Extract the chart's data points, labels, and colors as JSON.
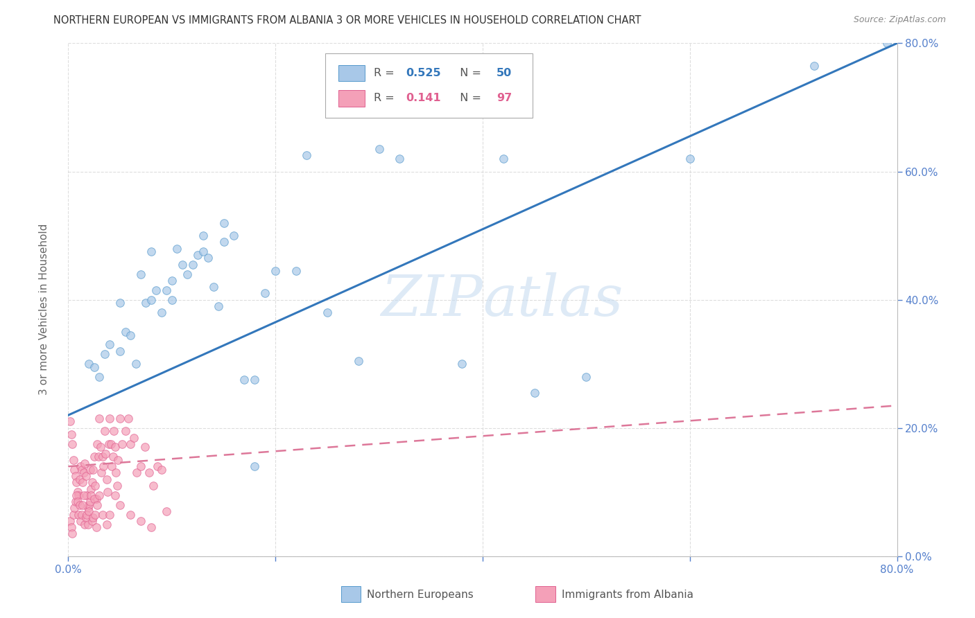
{
  "title": "NORTHERN EUROPEAN VS IMMIGRANTS FROM ALBANIA 3 OR MORE VEHICLES IN HOUSEHOLD CORRELATION CHART",
  "source": "Source: ZipAtlas.com",
  "ylabel": "3 or more Vehicles in Household",
  "xlim": [
    0,
    0.8
  ],
  "ylim": [
    0,
    0.8
  ],
  "xticks": [
    0.0,
    0.2,
    0.4,
    0.6,
    0.8
  ],
  "yticks": [
    0.0,
    0.2,
    0.4,
    0.6,
    0.8
  ],
  "xticklabels": [
    "0.0%",
    "",
    "",
    "",
    "80.0%"
  ],
  "yticklabels": [
    "0.0%",
    "20.0%",
    "40.0%",
    "60.0%",
    "80.0%"
  ],
  "watermark": "ZIPatlas",
  "blue_R": 0.525,
  "blue_N": 50,
  "pink_R": 0.141,
  "pink_N": 97,
  "blue_color": "#a8c8e8",
  "pink_color": "#f4a0b8",
  "blue_edge_color": "#5599cc",
  "pink_edge_color": "#e06090",
  "blue_line_color": "#3377bb",
  "pink_line_color": "#dd7799",
  "grid_color": "#dddddd",
  "tick_color": "#5580cc",
  "title_color": "#333333",
  "source_color": "#888888",
  "legend_text_color": "#444444",
  "blue_x": [
    0.02,
    0.025,
    0.035,
    0.04,
    0.05,
    0.055,
    0.06,
    0.065,
    0.07,
    0.075,
    0.08,
    0.085,
    0.09,
    0.095,
    0.1,
    0.105,
    0.11,
    0.115,
    0.12,
    0.125,
    0.13,
    0.135,
    0.14,
    0.145,
    0.15,
    0.16,
    0.17,
    0.18,
    0.19,
    0.2,
    0.22,
    0.25,
    0.28,
    0.32,
    0.38,
    0.42,
    0.5,
    0.6,
    0.72,
    0.79,
    0.03,
    0.05,
    0.08,
    0.1,
    0.13,
    0.15,
    0.18,
    0.23,
    0.3,
    0.45
  ],
  "blue_y": [
    0.3,
    0.295,
    0.315,
    0.33,
    0.32,
    0.35,
    0.345,
    0.3,
    0.44,
    0.395,
    0.4,
    0.415,
    0.38,
    0.415,
    0.43,
    0.48,
    0.455,
    0.44,
    0.455,
    0.47,
    0.475,
    0.465,
    0.42,
    0.39,
    0.49,
    0.5,
    0.275,
    0.275,
    0.41,
    0.445,
    0.445,
    0.38,
    0.305,
    0.62,
    0.3,
    0.62,
    0.28,
    0.62,
    0.765,
    0.8,
    0.28,
    0.395,
    0.475,
    0.4,
    0.5,
    0.52,
    0.14,
    0.625,
    0.635,
    0.255
  ],
  "pink_x": [
    0.002,
    0.003,
    0.004,
    0.005,
    0.006,
    0.007,
    0.008,
    0.009,
    0.01,
    0.011,
    0.012,
    0.013,
    0.014,
    0.015,
    0.016,
    0.017,
    0.018,
    0.019,
    0.02,
    0.021,
    0.022,
    0.023,
    0.024,
    0.025,
    0.026,
    0.027,
    0.028,
    0.029,
    0.03,
    0.031,
    0.032,
    0.033,
    0.034,
    0.035,
    0.036,
    0.037,
    0.038,
    0.039,
    0.04,
    0.041,
    0.042,
    0.043,
    0.044,
    0.045,
    0.046,
    0.047,
    0.048,
    0.05,
    0.052,
    0.055,
    0.058,
    0.06,
    0.063,
    0.066,
    0.07,
    0.074,
    0.078,
    0.082,
    0.086,
    0.09,
    0.002,
    0.003,
    0.004,
    0.005,
    0.006,
    0.007,
    0.008,
    0.009,
    0.01,
    0.011,
    0.012,
    0.013,
    0.014,
    0.015,
    0.016,
    0.017,
    0.018,
    0.019,
    0.02,
    0.021,
    0.022,
    0.023,
    0.024,
    0.025,
    0.026,
    0.027,
    0.028,
    0.03,
    0.033,
    0.037,
    0.04,
    0.045,
    0.05,
    0.06,
    0.07,
    0.08,
    0.095
  ],
  "pink_y": [
    0.21,
    0.19,
    0.175,
    0.15,
    0.135,
    0.125,
    0.115,
    0.1,
    0.095,
    0.12,
    0.14,
    0.135,
    0.115,
    0.13,
    0.145,
    0.125,
    0.095,
    0.075,
    0.08,
    0.135,
    0.105,
    0.115,
    0.135,
    0.155,
    0.11,
    0.09,
    0.175,
    0.155,
    0.215,
    0.17,
    0.13,
    0.155,
    0.14,
    0.195,
    0.16,
    0.12,
    0.1,
    0.175,
    0.215,
    0.175,
    0.14,
    0.155,
    0.195,
    0.17,
    0.13,
    0.11,
    0.15,
    0.215,
    0.175,
    0.195,
    0.215,
    0.175,
    0.185,
    0.13,
    0.14,
    0.17,
    0.13,
    0.11,
    0.14,
    0.135,
    0.055,
    0.045,
    0.035,
    0.065,
    0.075,
    0.085,
    0.095,
    0.085,
    0.065,
    0.08,
    0.055,
    0.065,
    0.08,
    0.095,
    0.05,
    0.06,
    0.065,
    0.05,
    0.07,
    0.085,
    0.095,
    0.055,
    0.06,
    0.09,
    0.065,
    0.045,
    0.08,
    0.095,
    0.065,
    0.05,
    0.065,
    0.095,
    0.08,
    0.065,
    0.055,
    0.045,
    0.07
  ],
  "blue_line_x0": 0.0,
  "blue_line_y0": 0.22,
  "blue_line_x1": 0.8,
  "blue_line_y1": 0.8,
  "pink_line_x0": 0.0,
  "pink_line_y0": 0.14,
  "pink_line_x1": 0.8,
  "pink_line_y1": 0.235
}
